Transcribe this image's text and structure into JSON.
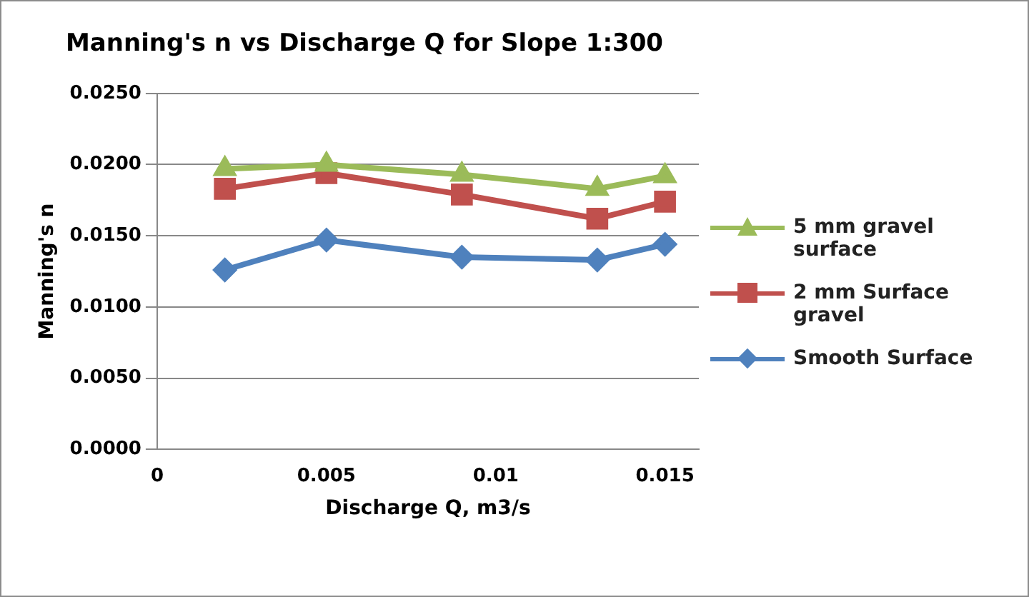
{
  "chart_data": {
    "type": "line",
    "title": "Manning's n vs Discharge Q for Slope 1:300",
    "xlabel": "Discharge Q, m3/s",
    "ylabel": "Manning's n",
    "x": [
      0.002,
      0.005,
      0.009,
      0.013,
      0.015
    ],
    "series": [
      {
        "name": "5 mm gravel surface",
        "color": "#9bbb59",
        "marker": "triangle",
        "values": [
          0.0197,
          0.02,
          0.0193,
          0.0183,
          0.0192
        ]
      },
      {
        "name": "2 mm Surface gravel",
        "color": "#c0504d",
        "marker": "square",
        "values": [
          0.0183,
          0.0194,
          0.0179,
          0.0162,
          0.0174
        ]
      },
      {
        "name": "Smooth Surface",
        "color": "#4f81bd",
        "marker": "diamond",
        "values": [
          0.0126,
          0.0147,
          0.0135,
          0.0133,
          0.0144
        ]
      }
    ],
    "xlim": [
      0,
      0.016
    ],
    "xticks": [
      0,
      0.005,
      0.01,
      0.015
    ],
    "ylim": [
      0,
      0.025
    ],
    "yticks": [
      {
        "value": 0,
        "label": "0.0000"
      },
      {
        "value": 0.005,
        "label": "0.0050"
      },
      {
        "value": 0.01,
        "label": "0.0100"
      },
      {
        "value": 0.015,
        "label": "0.0150"
      },
      {
        "value": 0.02,
        "label": "0.0200"
      },
      {
        "value": 0.025,
        "label": "0.0250"
      }
    ],
    "grid": "y",
    "legend": "right"
  }
}
